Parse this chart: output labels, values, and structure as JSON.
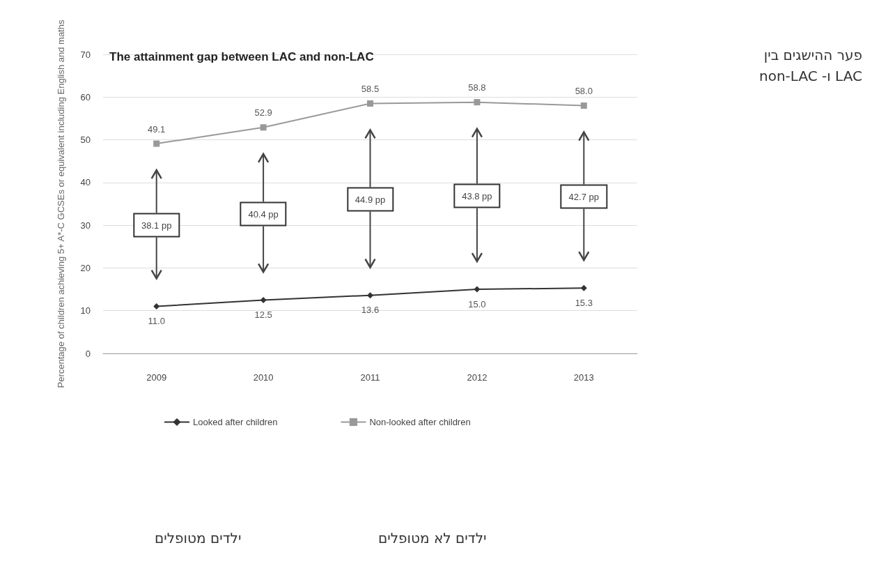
{
  "chart_data": {
    "type": "line",
    "title": "The attainment gap between LAC and non-LAC",
    "ylabel": "Percentage of children achieving 5+ A*-C GCSEs or equivalent including English and maths",
    "categories": [
      "2009",
      "2010",
      "2011",
      "2012",
      "2013"
    ],
    "series": [
      {
        "name": "Looked after children",
        "color": "#333333",
        "marker": "diamond",
        "values": [
          11.0,
          12.5,
          13.6,
          15.0,
          15.3
        ],
        "value_labels": [
          "11.0",
          "12.5",
          "13.6",
          "15.0",
          "15.3"
        ]
      },
      {
        "name": "Non-looked after children",
        "color": "#999999",
        "marker": "square",
        "values": [
          49.1,
          52.9,
          58.5,
          58.8,
          58.0
        ],
        "value_labels": [
          "49.1",
          "52.9",
          "58.5",
          "58.8",
          "58.0"
        ]
      }
    ],
    "ylim": [
      0,
      70
    ],
    "yticks": [
      0,
      10,
      20,
      30,
      40,
      50,
      60,
      70
    ],
    "grid": "y",
    "legend": "bottom",
    "annotations": [
      "38.1 pp",
      "40.4 pp",
      "44.9 pp",
      "43.8 pp",
      "42.7 pp",
      "פער ההישגים בין LAC ו- non-LAC",
      "ילדים מטופלים",
      "ילדים לא מטופלים"
    ]
  }
}
